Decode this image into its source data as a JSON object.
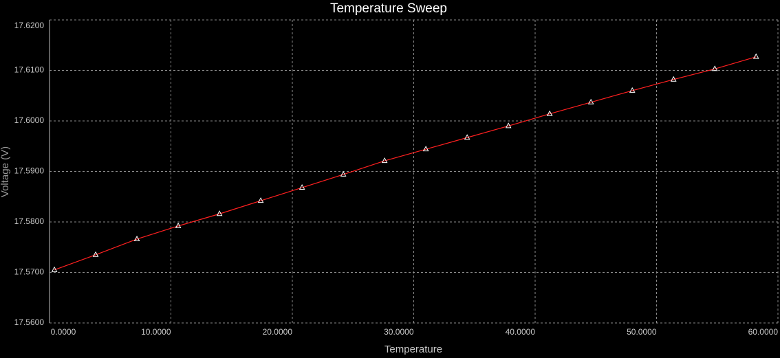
{
  "chart_data": {
    "type": "line",
    "title": "Temperature Sweep",
    "x_label": "Temperature",
    "y_label": "Voltage (V)",
    "x": [
      0.4,
      3.8,
      7.2,
      10.6,
      14.0,
      17.4,
      20.8,
      24.2,
      27.6,
      31.0,
      34.4,
      37.8,
      41.2,
      44.6,
      48.0,
      51.4,
      54.8,
      58.2
    ],
    "series": [
      {
        "color": "#ff2020",
        "marker_color": "#ffffff",
        "values": [
          17.5705,
          17.5735,
          17.5766,
          17.5792,
          17.5816,
          17.5842,
          17.5868,
          17.5894,
          17.5921,
          17.5944,
          17.5967,
          17.599,
          17.6014,
          17.6037,
          17.606,
          17.6082,
          17.6103,
          17.6127
        ]
      }
    ],
    "xlim": [
      0,
      60
    ],
    "ylim": [
      17.56,
      17.62
    ],
    "xticks": [
      {
        "value": 0,
        "label": "0.0000"
      },
      {
        "value": 10,
        "label": "10.0000"
      },
      {
        "value": 20,
        "label": "20.0000"
      },
      {
        "value": 30,
        "label": "30.0000"
      },
      {
        "value": 40,
        "label": "40.0000"
      },
      {
        "value": 50,
        "label": "50.0000"
      },
      {
        "value": 60,
        "label": "60.0000"
      }
    ],
    "yticks": [
      {
        "value": 17.56,
        "label": "17.5600"
      },
      {
        "value": 17.57,
        "label": "17.5700"
      },
      {
        "value": 17.58,
        "label": "17.5800"
      },
      {
        "value": 17.59,
        "label": "17.5900"
      },
      {
        "value": 17.6,
        "label": "17.6000"
      },
      {
        "value": 17.61,
        "label": "17.6100"
      },
      {
        "value": 17.62,
        "label": "17.6200"
      }
    ],
    "grid": true
  }
}
